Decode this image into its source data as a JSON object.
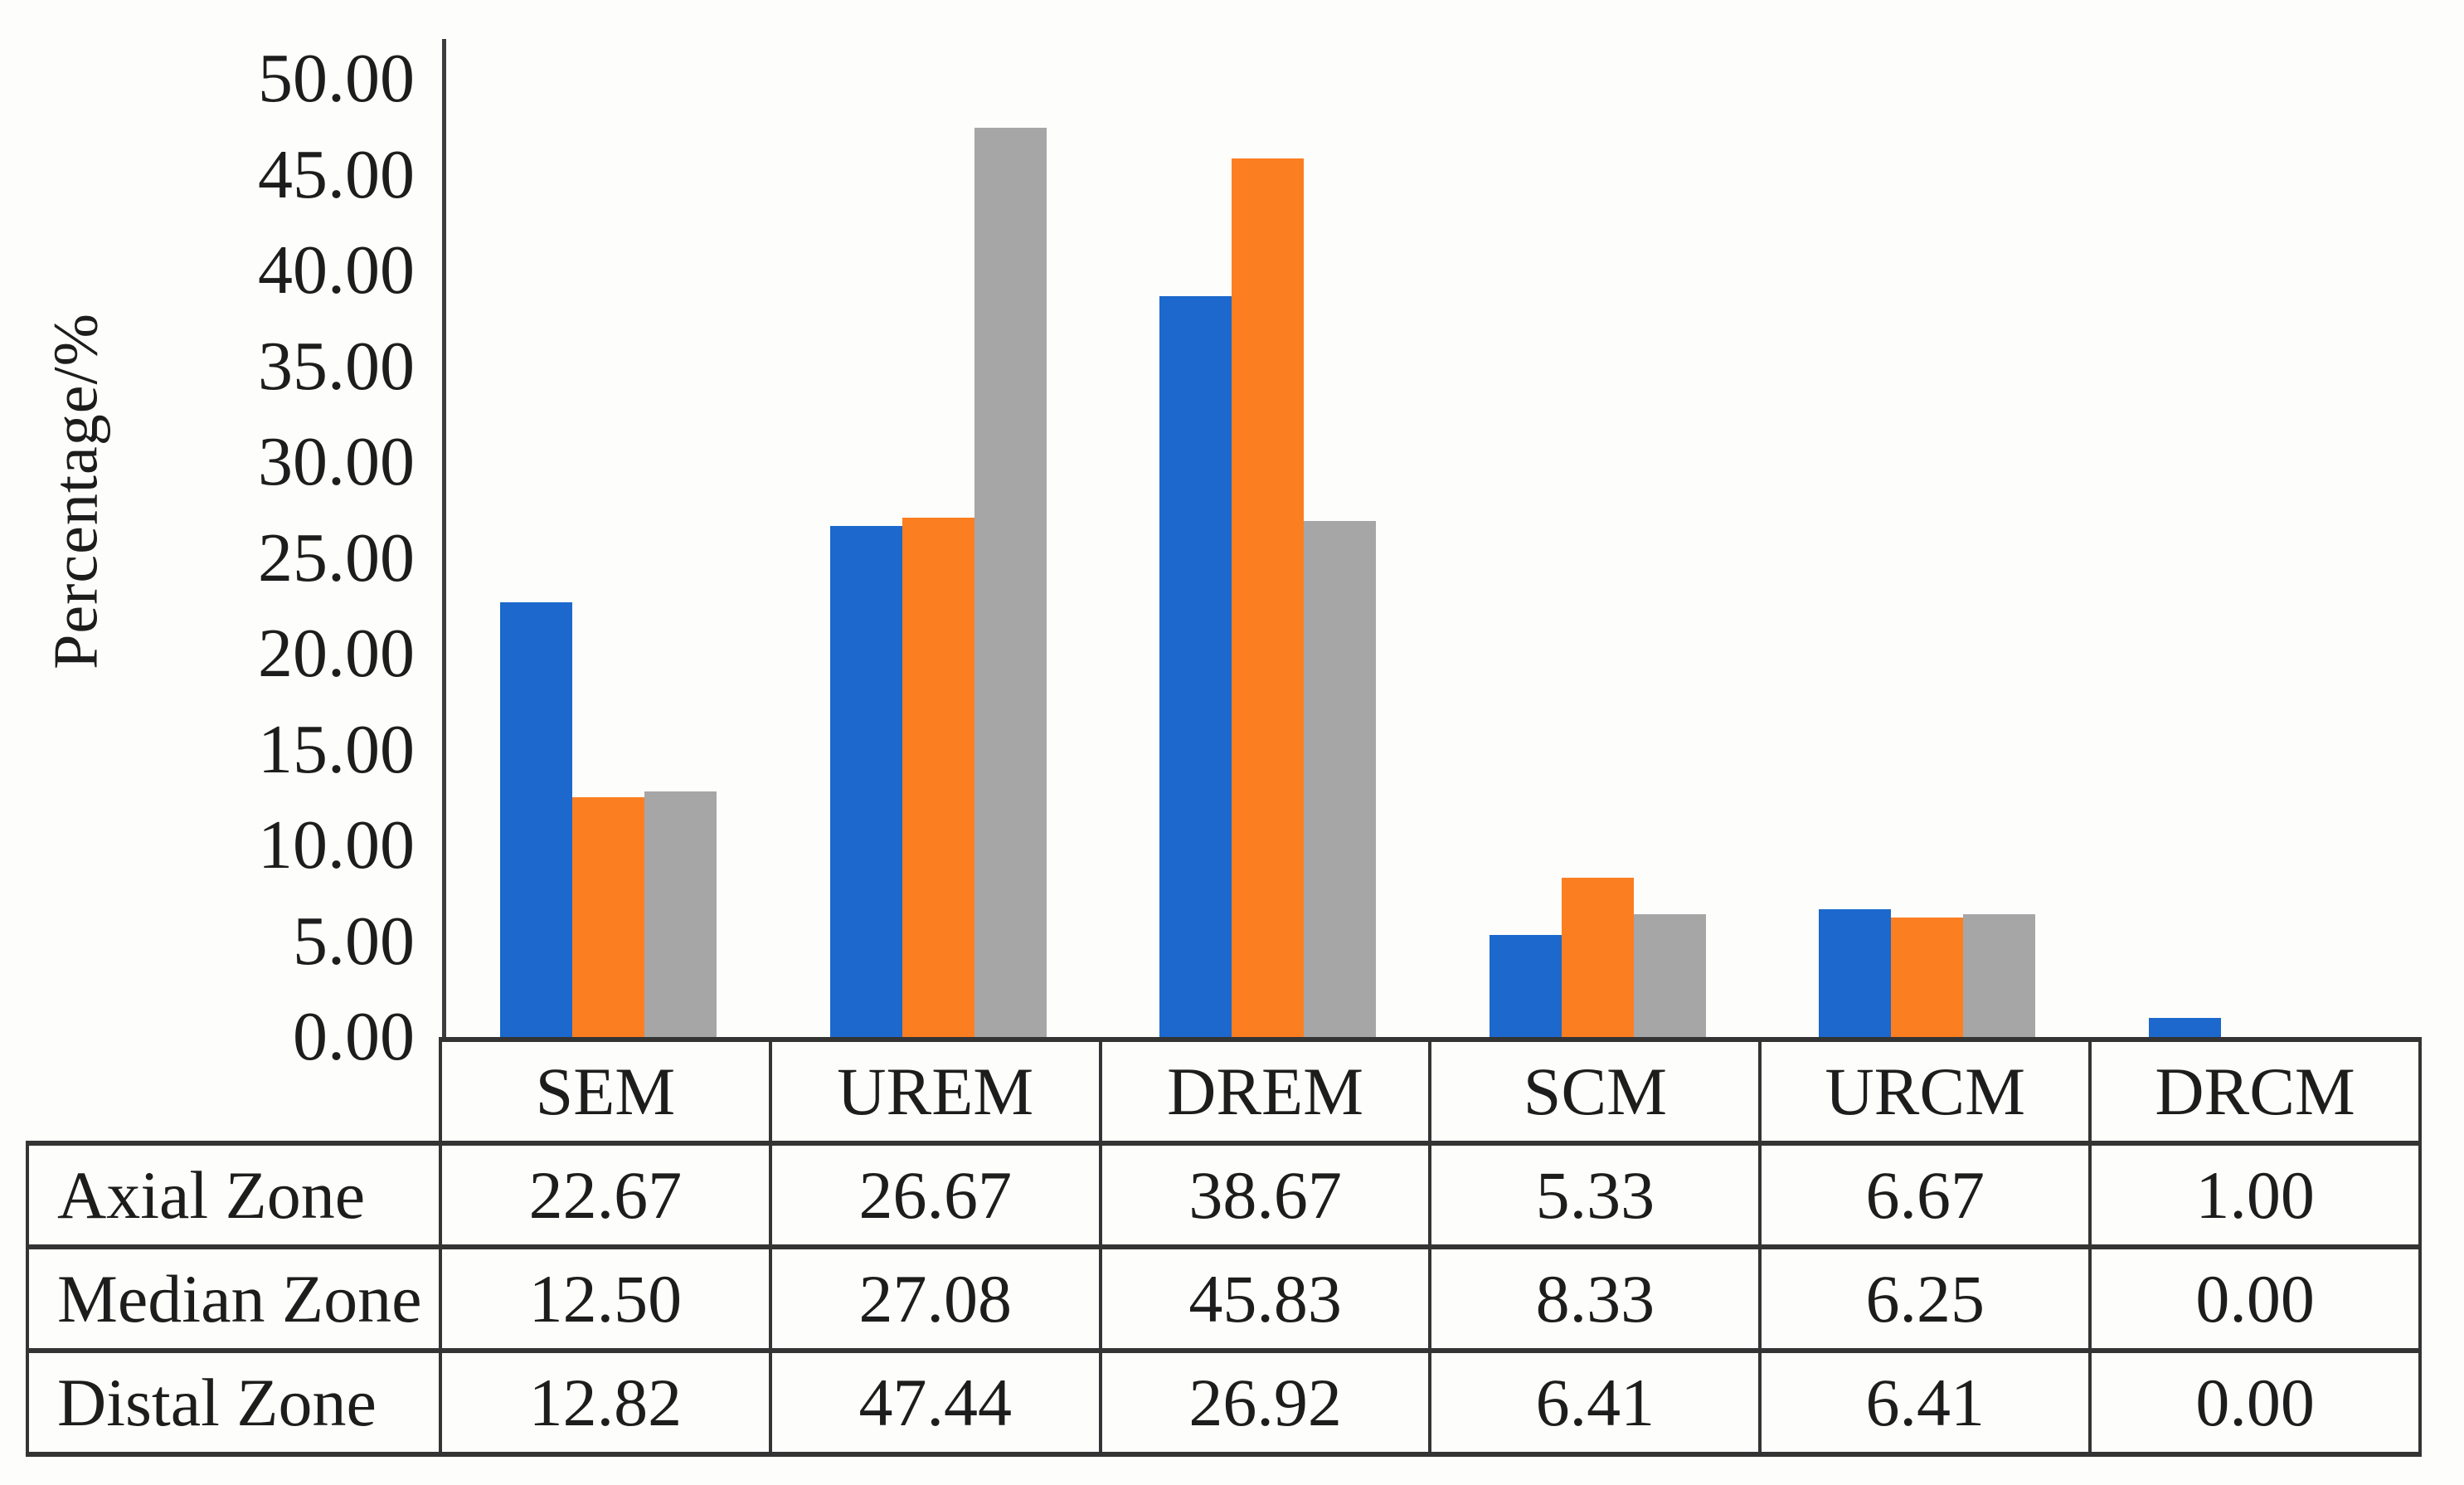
{
  "figure": {
    "y_axis_title": "Percentage/%",
    "y_ticks": [
      "50.00",
      "45.00",
      "40.00",
      "35.00",
      "30.00",
      "25.00",
      "20.00",
      "15.00",
      "10.00",
      "5.00",
      "0.00"
    ]
  },
  "chart_data": {
    "type": "bar",
    "title": "",
    "xlabel": "",
    "ylabel": "Percentage/%",
    "ylim": [
      0,
      50
    ],
    "ytick_step": 5,
    "grid": false,
    "legend_position": "none (series named by table row headers)",
    "categories": [
      "SEM",
      "UREM",
      "DREM",
      "SCM",
      "URCM",
      "DRCM"
    ],
    "series": [
      {
        "name": "Axial Zone",
        "color": "#1c68cc",
        "values": [
          22.67,
          26.67,
          38.67,
          5.33,
          6.67,
          1.0
        ]
      },
      {
        "name": "Median Zone",
        "color": "#fb7e21",
        "values": [
          12.5,
          27.08,
          45.83,
          8.33,
          6.25,
          0.0
        ]
      },
      {
        "name": "Distal Zone",
        "color": "#a6a6a6",
        "values": [
          12.82,
          47.44,
          26.92,
          6.41,
          6.41,
          0.0
        ]
      }
    ]
  },
  "table": {
    "column_headers": [
      "SEM",
      "UREM",
      "DREM",
      "SCM",
      "URCM",
      "DRCM"
    ],
    "row_headers": [
      "Axial Zone",
      "Median Zone",
      "Distal Zone"
    ],
    "rows": [
      [
        "22.67",
        "26.67",
        "38.67",
        "5.33",
        "6.67",
        "1.00"
      ],
      [
        "12.50",
        "27.08",
        "45.83",
        "8.33",
        "6.25",
        "0.00"
      ],
      [
        "12.82",
        "47.44",
        "26.92",
        "6.41",
        "6.41",
        "0.00"
      ]
    ]
  },
  "colors": {
    "axis_and_borders": "#3d3d3d",
    "series_axial": "#1c68cc",
    "series_median": "#fb7e21",
    "series_distal": "#a6a6a6",
    "text": "#1d1d1d",
    "background": "#fdfdfb"
  }
}
